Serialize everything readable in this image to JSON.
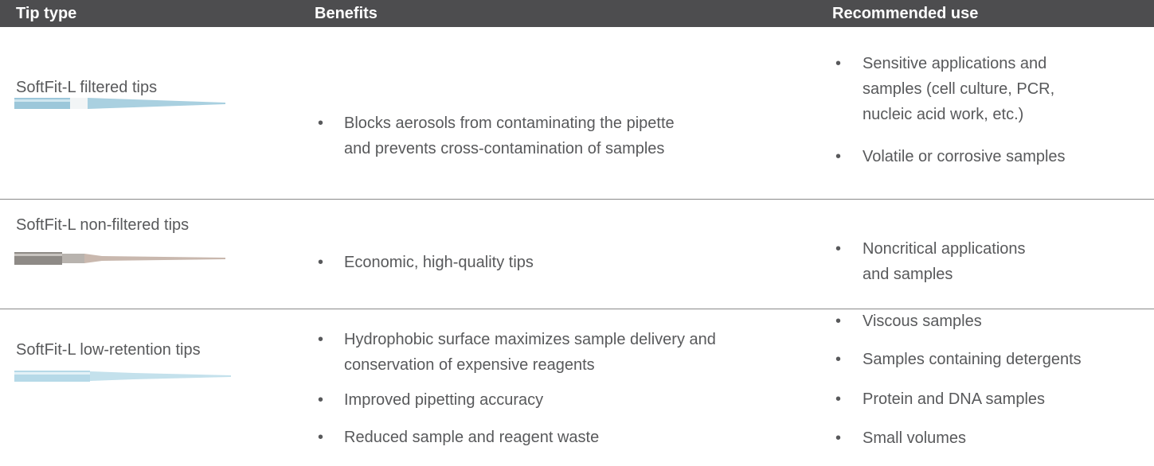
{
  "table": {
    "columns": [
      "Tip type",
      "Benefits",
      "Recommended use"
    ],
    "rows": [
      {
        "tip_type": "SoftFit-L filtered tips",
        "benefits": [
          [
            "Blocks aerosols from contaminating the pipette",
            "and prevents cross-contamination of samples"
          ]
        ],
        "recommended_use": [
          [
            "Sensitive applications and",
            "samples (cell culture, PCR,",
            "nucleic acid work, etc.)"
          ],
          [
            "Volatile or corrosive samples"
          ]
        ]
      },
      {
        "tip_type": "SoftFit-L non-filtered tips",
        "benefits": [
          [
            "Economic, high-quality tips"
          ]
        ],
        "recommended_use": [
          [
            "Noncritical applications",
            "and samples"
          ]
        ]
      },
      {
        "tip_type": "SoftFit-L low-retention tips",
        "benefits": [
          [
            "Hydrophobic surface maximizes sample delivery and",
            "conservation of expensive reagents"
          ],
          [
            "Improved pipetting accuracy"
          ],
          [
            "Reduced sample and reagent waste"
          ]
        ],
        "recommended_use": [
          [
            "Viscous samples"
          ],
          [
            "Samples containing detergents"
          ],
          [
            "Protein and DNA samples"
          ],
          [
            "Small volumes"
          ]
        ]
      }
    ]
  }
}
